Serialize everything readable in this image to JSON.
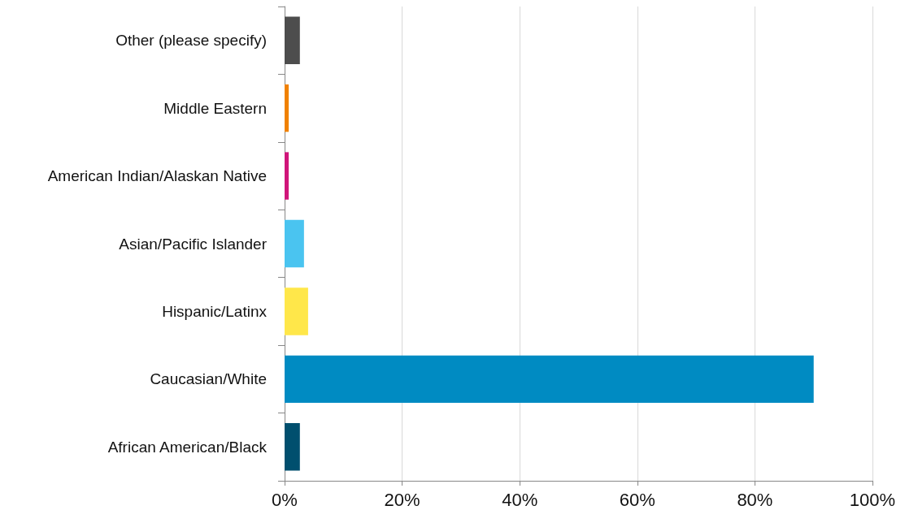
{
  "chart_data": {
    "type": "bar",
    "orientation": "horizontal",
    "categories": [
      "Other (please specify)",
      "Middle Eastern",
      "American Indian/Alaskan Native",
      "Asian/Pacific Islander",
      "Hispanic/Latinx",
      "Caucasian/White",
      "African American/Black"
    ],
    "values": [
      2.6,
      0.7,
      0.7,
      3.3,
      4.0,
      90.0,
      2.6
    ],
    "colors": [
      "#4d4d4d",
      "#f08100",
      "#d0157a",
      "#4ac4f0",
      "#ffe74a",
      "#008bc2",
      "#004f6e"
    ],
    "xlim": [
      0,
      100
    ],
    "xticks": [
      {
        "value": 0,
        "label": "0%"
      },
      {
        "value": 20,
        "label": "20%"
      },
      {
        "value": 40,
        "label": "40%"
      },
      {
        "value": 60,
        "label": "60%"
      },
      {
        "value": 80,
        "label": "80%"
      },
      {
        "value": 100,
        "label": "100%"
      }
    ],
    "grid": "x"
  }
}
